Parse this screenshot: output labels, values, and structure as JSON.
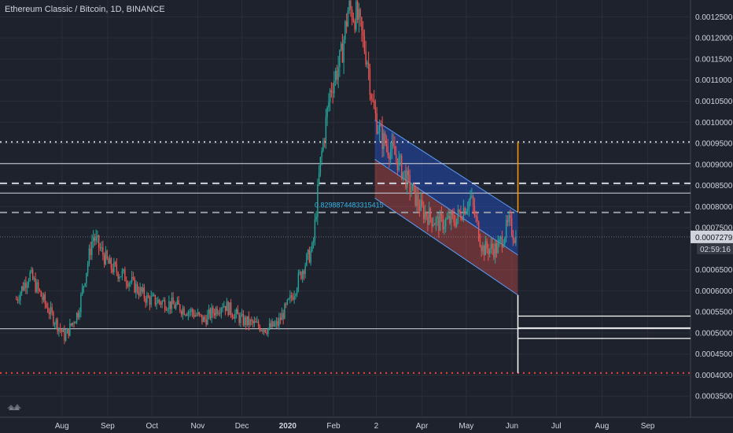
{
  "header": {
    "title": "Ethereum Classic / Bitcoin, 1D, BINANCE"
  },
  "colors": {
    "background": "#1e222d",
    "up": "#26a69a",
    "down": "#ef5350",
    "channel_upper_fill": "#2962ff",
    "channel_lower_fill": "#ef5350",
    "fib_label": "#3bb3e4",
    "target_line": "#ff9800",
    "support_line": "#f44336",
    "axis_text": "#d1d4dc"
  },
  "annotations": {
    "fib_label": "0.8298874483315415",
    "price_tag": "0.0007279",
    "countdown": "02:59:16"
  },
  "chart_data": {
    "type": "candlestick",
    "title": "Ethereum Classic / Bitcoin, 1D, BINANCE",
    "xlabel": "",
    "ylabel": "",
    "ylim": [
      0.0003,
      0.00129
    ],
    "y_ticks": [
      "0.0012500",
      "0.0012000",
      "0.0011500",
      "0.0011000",
      "0.0010500",
      "0.0010000",
      "0.0009500",
      "0.0009000",
      "0.0008500",
      "0.0008000",
      "0.0007500",
      "0.0006500",
      "0.0006000",
      "0.0005500",
      "0.0005000",
      "0.0004500",
      "0.0004000",
      "0.0003500"
    ],
    "x_ticks": [
      "Aug",
      "Sep",
      "Oct",
      "Nov",
      "Dec",
      "2020",
      "Feb",
      "2",
      "Apr",
      "May",
      "Jun",
      "Jul",
      "Aug",
      "Sep"
    ],
    "x_ticks_bold": [
      "2020"
    ],
    "grid": true,
    "last_price": 0.0007279,
    "horizontal_levels": [
      {
        "price": 0.000953,
        "style": "dotted",
        "color": "#d1d4dc"
      },
      {
        "price": 0.000902,
        "style": "solid",
        "color": "#d1d4dc"
      },
      {
        "price": 0.000855,
        "style": "dashed",
        "color": "#d1d4dc"
      },
      {
        "price": 0.000832,
        "style": "solid",
        "color": "#d1d4dc"
      },
      {
        "price": 0.000786,
        "style": "dashed",
        "color": "#9598a1"
      },
      {
        "price": 0.00051,
        "style": "solid",
        "color": "#d1d4dc"
      },
      {
        "price": 0.000405,
        "style": "dotted",
        "color": "#f44336"
      }
    ],
    "price_path": [
      {
        "date": "2019-07-01",
        "close": 0.00058
      },
      {
        "date": "2019-07-10",
        "close": 0.00064
      },
      {
        "date": "2019-07-22",
        "close": 0.00056
      },
      {
        "date": "2019-08-03",
        "close": 0.00049
      },
      {
        "date": "2019-08-12",
        "close": 0.00055
      },
      {
        "date": "2019-08-22",
        "close": 0.00073
      },
      {
        "date": "2019-09-02",
        "close": 0.00066
      },
      {
        "date": "2019-09-14",
        "close": 0.00063
      },
      {
        "date": "2019-09-28",
        "close": 0.00058
      },
      {
        "date": "2019-10-12",
        "close": 0.00057
      },
      {
        "date": "2019-10-28",
        "close": 0.00055
      },
      {
        "date": "2019-11-05",
        "close": 0.00053
      },
      {
        "date": "2019-11-18",
        "close": 0.00057
      },
      {
        "date": "2019-12-01",
        "close": 0.00053
      },
      {
        "date": "2019-12-18",
        "close": 0.00051
      },
      {
        "date": "2019-12-25",
        "close": 0.00052
      },
      {
        "date": "2020-01-03",
        "close": 0.00058
      },
      {
        "date": "2020-01-12",
        "close": 0.00066
      },
      {
        "date": "2020-01-18",
        "close": 0.0007
      },
      {
        "date": "2020-01-23",
        "close": 0.0009
      },
      {
        "date": "2020-01-30",
        "close": 0.00108
      },
      {
        "date": "2020-02-06",
        "close": 0.00115
      },
      {
        "date": "2020-02-11",
        "close": 0.00127
      },
      {
        "date": "2020-02-17",
        "close": 0.00125
      },
      {
        "date": "2020-02-24",
        "close": 0.00115
      },
      {
        "date": "2020-02-28",
        "close": 0.00103
      },
      {
        "date": "2020-03-05",
        "close": 0.00096
      },
      {
        "date": "2020-03-14",
        "close": 0.00092
      },
      {
        "date": "2020-03-22",
        "close": 0.00086
      },
      {
        "date": "2020-04-01",
        "close": 0.00079
      },
      {
        "date": "2020-04-12",
        "close": 0.00076
      },
      {
        "date": "2020-04-24",
        "close": 0.00077
      },
      {
        "date": "2020-05-04",
        "close": 0.00082
      },
      {
        "date": "2020-05-12",
        "close": 0.0007
      },
      {
        "date": "2020-05-22",
        "close": 0.0007
      },
      {
        "date": "2020-05-30",
        "close": 0.00076
      },
      {
        "date": "2020-06-04",
        "close": 0.00072
      }
    ],
    "channel": {
      "start": {
        "date": "2020-02-29",
        "upper": 0.001005,
        "mid": 0.000912,
        "lower": 0.00082
      },
      "end": {
        "date": "2020-06-05",
        "upper": 0.000786,
        "mid": 0.000685,
        "lower": 0.00059
      }
    },
    "projection": {
      "date": "2020-06-05",
      "from": 0.00059,
      "to": 0.000405,
      "target_top": 0.000953
    },
    "projection_levels": [
      0.00054,
      0.000512,
      0.000487
    ]
  }
}
